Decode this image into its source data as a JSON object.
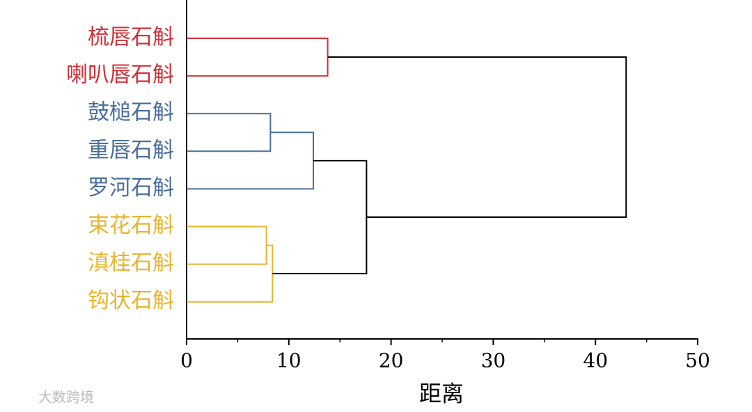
{
  "chart_data": {
    "type": "dendrogram",
    "xlabel": "距离",
    "watermark": "大数跨境",
    "xlim": [
      0,
      50
    ],
    "xticks": [
      0,
      10,
      20,
      30,
      40,
      50
    ],
    "xminorticks": [
      5,
      15,
      25,
      35,
      45
    ],
    "tree": {
      "height": 43,
      "color": "#000000",
      "children": [
        {
          "height": 13.8,
          "color": "#d0313a",
          "children": [
            {
              "label": "梳唇石斛",
              "color": "#d0313a"
            },
            {
              "label": "喇叭唇石斛",
              "color": "#d0313a"
            }
          ]
        },
        {
          "height": 17.6,
          "color": "#000000",
          "children": [
            {
              "height": 12.4,
              "color": "#4a6e9a",
              "children": [
                {
                  "height": 8.2,
                  "color": "#4a6e9a",
                  "children": [
                    {
                      "label": "鼓槌石斛",
                      "color": "#4a6e9a"
                    },
                    {
                      "label": "重唇石斛",
                      "color": "#4a6e9a"
                    }
                  ]
                },
                {
                  "label": "罗河石斛",
                  "color": "#4a6e9a"
                }
              ]
            },
            {
              "height": 8.4,
              "color": "#e8b530",
              "children": [
                {
                  "height": 7.8,
                  "color": "#e8b530",
                  "children": [
                    {
                      "label": "束花石斛",
                      "color": "#e8b530"
                    },
                    {
                      "label": "滇桂石斛",
                      "color": "#e8b530"
                    }
                  ]
                },
                {
                  "label": "钩状石斛",
                  "color": "#e8b530"
                }
              ]
            }
          ]
        }
      ]
    }
  }
}
